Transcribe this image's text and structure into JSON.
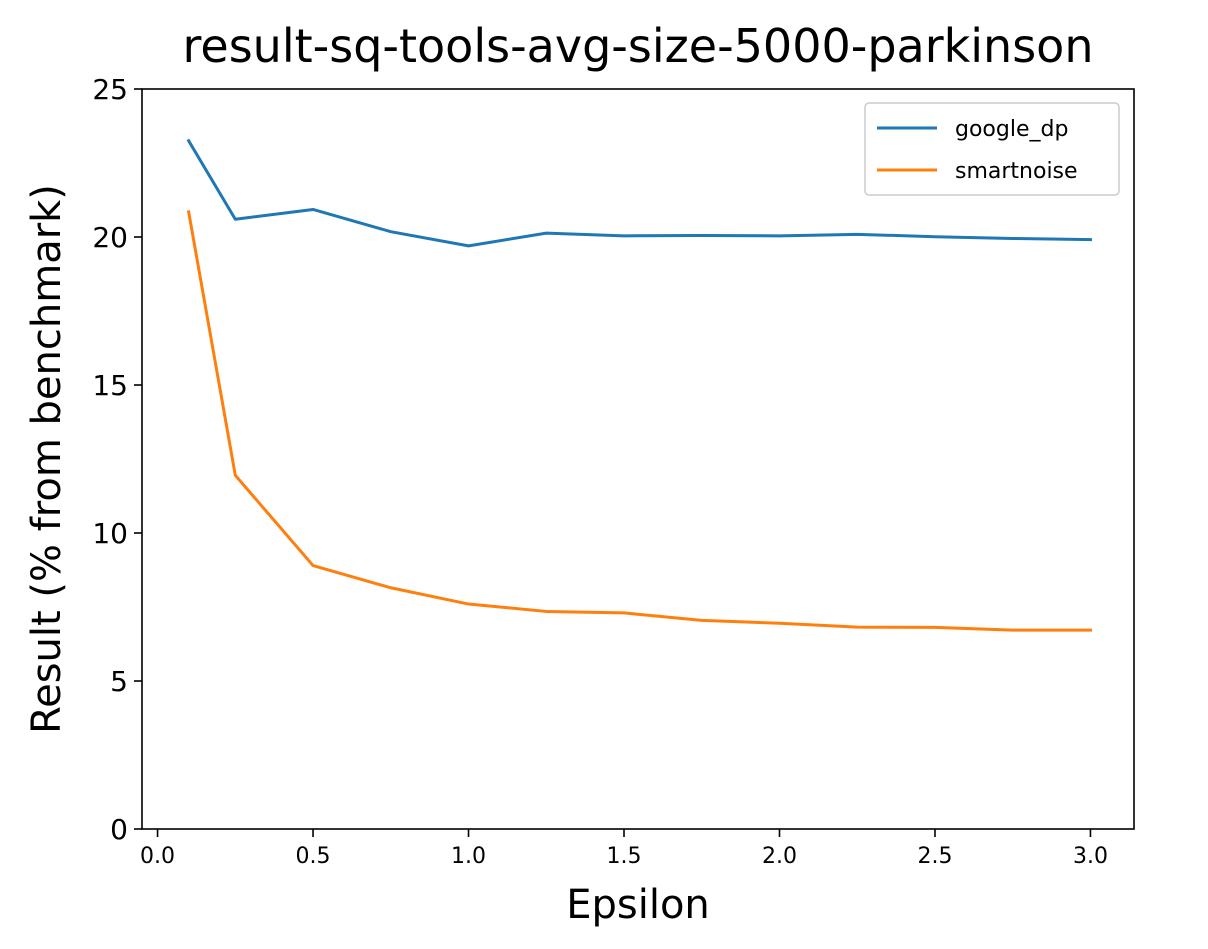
{
  "chart_data": {
    "type": "line",
    "title": "result-sq-tools-avg-size-5000-parkinson",
    "xlabel": "Epsilon",
    "ylabel": "Result (% from benchmark)",
    "xlim": [
      -0.05,
      3.14
    ],
    "ylim": [
      0,
      25
    ],
    "xticks": [
      "0.0",
      "0.5",
      "1.0",
      "1.5",
      "2.0",
      "2.5",
      "3.0"
    ],
    "yticks": [
      "0",
      "5",
      "10",
      "15",
      "20",
      "25"
    ],
    "grid": false,
    "legend": "top-right",
    "x": [
      0.1,
      0.25,
      0.5,
      0.75,
      1.0,
      1.25,
      1.5,
      1.75,
      2.0,
      2.25,
      2.5,
      2.75,
      3.0
    ],
    "series": [
      {
        "name": "google_dp",
        "color": "#1f77b4",
        "values": [
          23.25,
          20.6,
          20.93,
          20.18,
          19.7,
          20.13,
          20.04,
          20.05,
          20.04,
          20.09,
          20.01,
          19.95,
          19.91
        ]
      },
      {
        "name": "smartnoise",
        "color": "#ff7f0e",
        "values": [
          20.85,
          11.95,
          8.9,
          8.15,
          7.6,
          7.35,
          7.3,
          7.05,
          6.95,
          6.82,
          6.81,
          6.72,
          6.72
        ]
      }
    ]
  }
}
